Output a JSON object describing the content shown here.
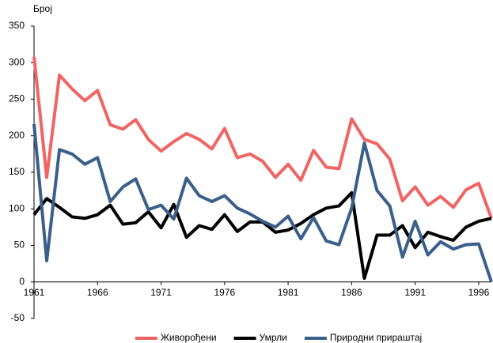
{
  "chart_data": {
    "type": "line",
    "y_label": "Број",
    "x": [
      1961,
      1962,
      1963,
      1964,
      1965,
      1966,
      1967,
      1968,
      1969,
      1970,
      1971,
      1972,
      1973,
      1974,
      1975,
      1976,
      1977,
      1978,
      1979,
      1980,
      1981,
      1982,
      1983,
      1984,
      1985,
      1986,
      1987,
      1988,
      1989,
      1990,
      1991,
      1992,
      1993,
      1994,
      1995,
      1996,
      1997
    ],
    "xlim": [
      1961,
      1997
    ],
    "xticks": [
      1961,
      1966,
      1971,
      1976,
      1981,
      1986,
      1991,
      1996
    ],
    "ylim": [
      -50,
      350
    ],
    "yticks": [
      -50,
      0,
      50,
      100,
      150,
      200,
      250,
      300,
      350
    ],
    "legend": "bottom",
    "series": [
      {
        "name": "Живорођени",
        "color": "#f26464",
        "values": [
          308,
          143,
          283,
          264,
          248,
          262,
          215,
          209,
          222,
          195,
          179,
          192,
          203,
          195,
          182,
          210,
          170,
          175,
          165,
          143,
          161,
          139,
          180,
          157,
          155,
          223,
          195,
          189,
          168,
          111,
          130,
          105,
          117,
          102,
          126,
          135,
          87
        ]
      },
      {
        "name": "Умрли",
        "color": "#000000",
        "values": [
          92,
          114,
          102,
          89,
          87,
          92,
          105,
          79,
          81,
          96,
          74,
          106,
          61,
          77,
          72,
          92,
          69,
          82,
          82,
          68,
          71,
          80,
          92,
          101,
          104,
          122,
          5,
          64,
          64,
          77,
          47,
          68,
          62,
          57,
          75,
          83,
          87
        ]
      },
      {
        "name": "Природни прираштај",
        "color": "#3a5f8a",
        "values": [
          216,
          29,
          181,
          175,
          161,
          170,
          110,
          130,
          141,
          99,
          105,
          86,
          142,
          118,
          110,
          118,
          101,
          93,
          83,
          75,
          90,
          59,
          88,
          56,
          51,
          101,
          190,
          125,
          104,
          34,
          83,
          37,
          55,
          45,
          51,
          52,
          0
        ]
      }
    ]
  }
}
